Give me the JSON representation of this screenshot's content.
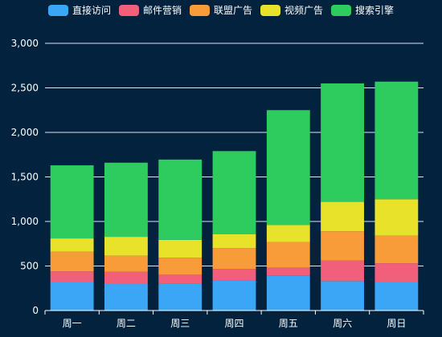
{
  "chart_data": {
    "type": "bar",
    "stacked": true,
    "categories": [
      "周一",
      "周二",
      "周三",
      "周四",
      "周五",
      "周六",
      "周日"
    ],
    "ylim": [
      0,
      3000
    ],
    "yticks": [
      0,
      500,
      1000,
      1500,
      2000,
      2500,
      3000
    ],
    "ytick_labels": [
      "0",
      "500",
      "1,000",
      "1,500",
      "2,000",
      "2,500",
      "3,000"
    ],
    "grid": true,
    "legend_position": "top-center",
    "series": [
      {
        "name": "直接访问",
        "color": "#3ba6f5",
        "values": [
          320,
          302,
          301,
          334,
          390,
          330,
          320
        ]
      },
      {
        "name": "邮件营销",
        "color": "#f25f7a",
        "values": [
          120,
          132,
          101,
          134,
          90,
          230,
          210
        ]
      },
      {
        "name": "联盟广告",
        "color": "#f79c38",
        "values": [
          220,
          182,
          191,
          234,
          290,
          330,
          310
        ]
      },
      {
        "name": "视频广告",
        "color": "#e8e22a",
        "values": [
          150,
          212,
          201,
          154,
          190,
          330,
          410
        ]
      },
      {
        "name": "搜索引擎",
        "color": "#2ecc5f",
        "values": [
          820,
          832,
          901,
          934,
          1290,
          1330,
          1320
        ]
      }
    ]
  }
}
